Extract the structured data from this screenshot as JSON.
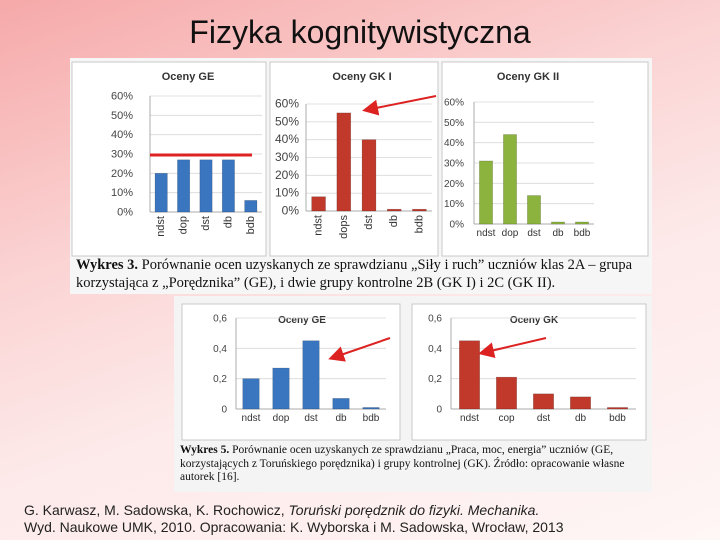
{
  "slide_title": "Fizyka kognitywistyczna",
  "captions": {
    "top_label": "Wykres 3.",
    "top_text": "Porównanie ocen uzyskanych ze sprawdzianu „Siły i ruch” uczniów klas 2A – grupa korzystająca z „Porędznika” (GE), i dwie grupy kontrolne 2B (GK I) i 2C (GK II).",
    "bottom_label": "Wykres 5.",
    "bottom_text": "Porównanie ocen uzyskanych ze sprawdzianu „Praca, moc, energia” uczniów (GE, korzystających z Toruńskiego porędznika) i grupy kontrolnej (GK). Źródło: opracowanie własne autorek [16]."
  },
  "footer": {
    "authors": "G. Karwasz, M. Sadowska, K. Rochowicz,",
    "book": "Toruński porędznik do fizyki. Mechanika.",
    "line2": "Wyd. Naukowe UMK, 2010. Opracowania: K. Wyborska i M. Sadowska, Wrocław, 2013"
  },
  "colors": {
    "blue": "#3a75c0",
    "red": "#c0392b",
    "green": "#8db33f",
    "annotation": "#dd2222"
  },
  "chart_data": [
    {
      "type": "bar",
      "title": "Oceny GE",
      "categories": [
        "ndst",
        "dop",
        "dst",
        "db",
        "bdb"
      ],
      "values": [
        20,
        27,
        27,
        27,
        6
      ],
      "tick_labels": [
        "0%",
        "10%",
        "20%",
        "30%",
        "40%",
        "50%",
        "60%"
      ],
      "ylim": [
        0,
        60
      ],
      "color": "blue",
      "grid": true
    },
    {
      "type": "bar",
      "title": "Oceny GK I",
      "categories": [
        "ndst",
        "dops",
        "dst",
        "db",
        "bdb"
      ],
      "values": [
        8,
        55,
        40,
        1,
        1
      ],
      "tick_labels": [
        "0%",
        "10%",
        "20%",
        "30%",
        "40%",
        "50%",
        "60%"
      ],
      "ylim": [
        0,
        60
      ],
      "color": "red",
      "grid": true
    },
    {
      "type": "bar",
      "title": "Oceny GK II",
      "categories": [
        "ndst",
        "dop",
        "dst",
        "db",
        "bdb"
      ],
      "values": [
        31,
        44,
        14,
        1,
        1
      ],
      "tick_labels": [
        "0%",
        "10%",
        "20%",
        "30%",
        "40%",
        "50%",
        "60%"
      ],
      "ylim": [
        0,
        60
      ],
      "color": "green",
      "grid": true
    },
    {
      "type": "bar",
      "title": "Oceny GE",
      "categories": [
        "ndst",
        "dop",
        "dst",
        "db",
        "bdb"
      ],
      "values": [
        0.2,
        0.27,
        0.45,
        0.07,
        0.01
      ],
      "tick_labels": [
        "0",
        "0,2",
        "0,4",
        "0,6"
      ],
      "ylim": [
        0,
        0.6
      ],
      "color": "blue",
      "grid": true
    },
    {
      "type": "bar",
      "title": "Oceny GK",
      "categories": [
        "ndst",
        "cop",
        "dst",
        "db",
        "bdb"
      ],
      "values": [
        0.45,
        0.21,
        0.1,
        0.08,
        0.01
      ],
      "tick_labels": [
        "0",
        "0,2",
        "0,4",
        "0,6"
      ],
      "ylim": [
        0,
        0.6
      ],
      "color": "red",
      "grid": true
    }
  ]
}
